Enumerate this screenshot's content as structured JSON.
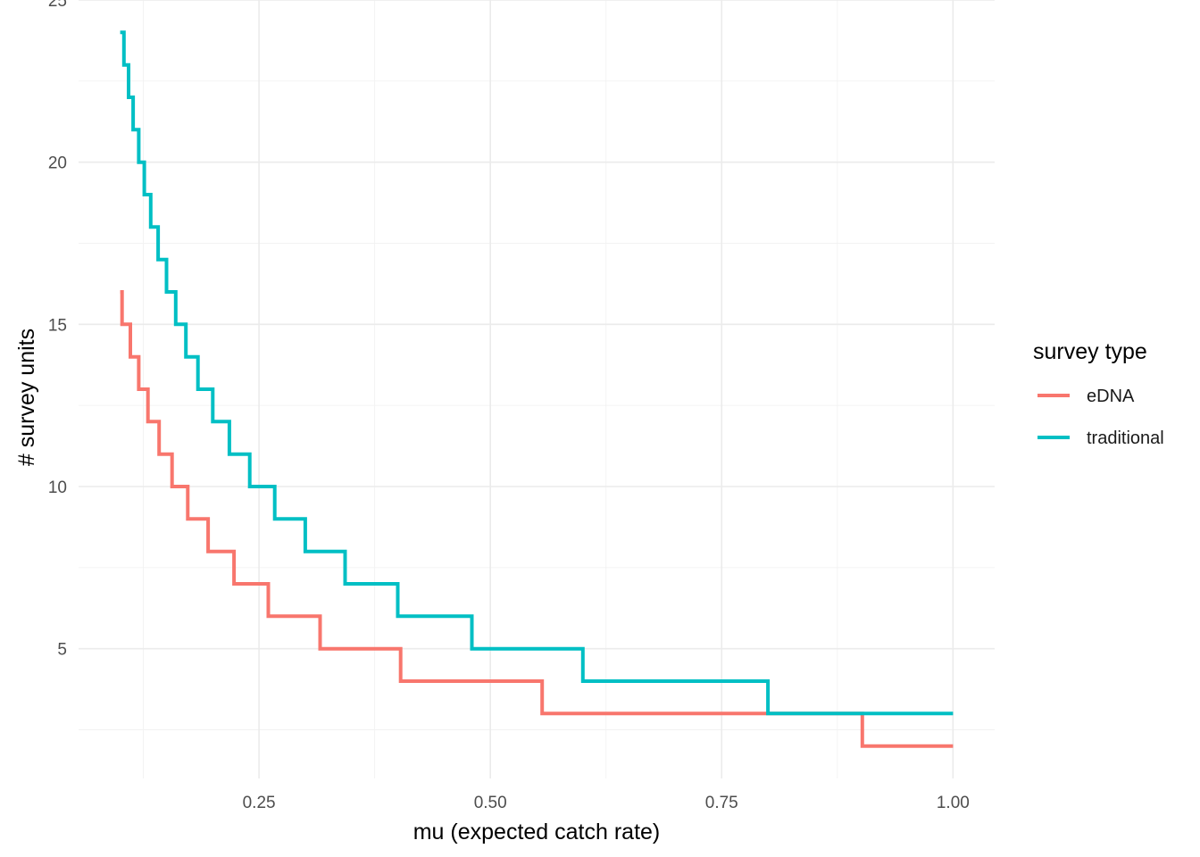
{
  "chart_data": {
    "type": "line",
    "line_style": "step",
    "xlabel": "mu (expected catch rate)",
    "ylabel": "# survey units",
    "xlim": [
      0.055,
      1.045
    ],
    "ylim": [
      1.0,
      25.0
    ],
    "x_ticks": [
      0.25,
      0.5,
      0.75,
      1.0
    ],
    "x_tick_labels": [
      "0.25",
      "0.50",
      "0.75",
      "1.00"
    ],
    "x_minor_ticks": [
      0.125,
      0.375,
      0.625,
      0.875
    ],
    "y_ticks": [
      5,
      10,
      15,
      20,
      25
    ],
    "y_tick_labels": [
      "5",
      "10",
      "15",
      "20",
      "25"
    ],
    "y_minor_ticks": [
      2.5,
      7.5,
      12.5,
      17.5,
      22.5
    ],
    "grid": true,
    "legend": {
      "title": "survey type",
      "placement": "right"
    },
    "series": [
      {
        "name": "eDNA",
        "color": "#F8766D",
        "steps": [
          [
            0.1,
            16
          ],
          [
            0.102,
            15
          ],
          [
            0.111,
            14
          ],
          [
            0.12,
            13
          ],
          [
            0.13,
            12
          ],
          [
            0.142,
            11
          ],
          [
            0.156,
            10
          ],
          [
            0.173,
            9
          ],
          [
            0.195,
            8
          ],
          [
            0.223,
            7
          ],
          [
            0.26,
            6
          ],
          [
            0.316,
            5
          ],
          [
            0.403,
            4
          ],
          [
            0.556,
            3
          ],
          [
            0.902,
            2
          ],
          [
            1.0,
            2
          ]
        ]
      },
      {
        "name": "traditional",
        "color": "#00BFC4",
        "steps": [
          [
            0.1,
            24
          ],
          [
            0.104,
            23
          ],
          [
            0.109,
            22
          ],
          [
            0.114,
            21
          ],
          [
            0.12,
            20
          ],
          [
            0.126,
            19
          ],
          [
            0.133,
            18
          ],
          [
            0.141,
            17
          ],
          [
            0.15,
            16
          ],
          [
            0.16,
            15
          ],
          [
            0.171,
            14
          ],
          [
            0.184,
            13
          ],
          [
            0.2,
            12
          ],
          [
            0.218,
            11
          ],
          [
            0.24,
            10
          ],
          [
            0.267,
            9
          ],
          [
            0.3,
            8
          ],
          [
            0.343,
            7
          ],
          [
            0.4,
            6
          ],
          [
            0.48,
            5
          ],
          [
            0.6,
            4
          ],
          [
            0.8,
            3
          ],
          [
            1.0,
            3
          ]
        ]
      }
    ]
  }
}
